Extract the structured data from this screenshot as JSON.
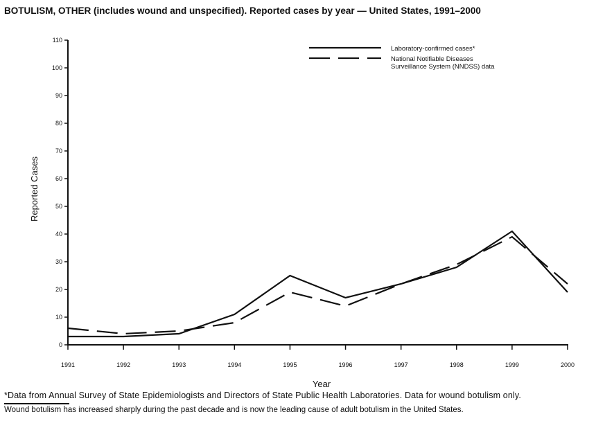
{
  "chart_data": {
    "type": "line",
    "title": "BOTULISM, OTHER (includes wound and unspecified). Reported cases by year — United States, 1991–2000",
    "xlabel": "Year",
    "ylabel": "Reported Cases",
    "x": [
      1991,
      1992,
      1993,
      1994,
      1995,
      1996,
      1997,
      1998,
      1999,
      2000
    ],
    "xticks": [
      "1991",
      "1992",
      "1993",
      "1994",
      "1995",
      "1996",
      "1997",
      "1998",
      "1999",
      "2000"
    ],
    "ylim": [
      0,
      110
    ],
    "yticks": [
      "0",
      "10",
      "20",
      "30",
      "40",
      "50",
      "60",
      "70",
      "80",
      "90",
      "100",
      "110"
    ],
    "grid": false,
    "legend_position": "top-right",
    "series": [
      {
        "name": "Laboratory-confirmed cases*",
        "style": "solid",
        "values": [
          3,
          3,
          4,
          11,
          25,
          17,
          22,
          28,
          41,
          19
        ]
      },
      {
        "name": "National Notifiable Diseases Surveillance System (NNDSS) data",
        "legend_lines": [
          "National Notifiable Diseases",
          "Surveillance System (NNDSS) data"
        ],
        "style": "dashed",
        "values": [
          6,
          4,
          5,
          8,
          19,
          14,
          22,
          29,
          39,
          22
        ]
      }
    ],
    "line_color": "#111111"
  },
  "footnote": "*Data from Annual Survey of State Epidemiologists and Directors of State Public Health Laboratories. Data for wound botulism only.",
  "note": "Wound botulism has increased sharply during the past decade and is now the leading cause of adult botulism in the United States."
}
